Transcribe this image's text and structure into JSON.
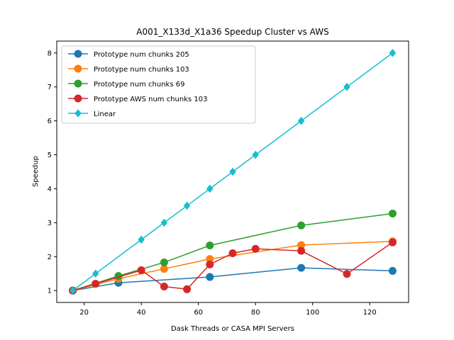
{
  "chart_data": {
    "type": "line",
    "title": "A001_X133d_X1a36 Speedup Cluster vs AWS",
    "xlabel": "Dask Threads or CASA MPI Servers",
    "ylabel": "Speedup",
    "xlim": [
      10.4,
      133.6
    ],
    "ylim": [
      0.65,
      8.35
    ],
    "xticks": [
      20,
      40,
      60,
      80,
      100,
      120
    ],
    "yticks": [
      1,
      2,
      3,
      4,
      5,
      6,
      7,
      8
    ],
    "grid": false,
    "legend_position": "upper-left",
    "series": [
      {
        "name": "Prototype num chunks 205",
        "color": "#1f77b4",
        "marker": "circle",
        "x": [
          16,
          32,
          64,
          96,
          128
        ],
        "y": [
          1.0,
          1.23,
          1.4,
          1.67,
          1.58
        ]
      },
      {
        "name": "Prototype num chunks 103",
        "color": "#ff7f0e",
        "marker": "circle",
        "x": [
          16,
          32,
          48,
          64,
          96,
          128
        ],
        "y": [
          1.0,
          1.35,
          1.64,
          1.93,
          2.34,
          2.45
        ]
      },
      {
        "name": "Prototype num chunks 69",
        "color": "#2ca02c",
        "marker": "circle",
        "x": [
          16,
          32,
          48,
          64,
          96,
          128
        ],
        "y": [
          1.0,
          1.43,
          1.83,
          2.33,
          2.92,
          3.27
        ]
      },
      {
        "name": "Prototype AWS num chunks 103",
        "color": "#d62728",
        "marker": "circle",
        "x": [
          16,
          24,
          40,
          48,
          56,
          64,
          72,
          80,
          96,
          112,
          128
        ],
        "y": [
          1.0,
          1.2,
          1.6,
          1.12,
          1.04,
          1.77,
          2.1,
          2.23,
          2.17,
          1.49,
          2.42
        ]
      },
      {
        "name": "Linear",
        "color": "#17becf",
        "marker": "diamond",
        "x": [
          16,
          24,
          40,
          48,
          56,
          64,
          72,
          80,
          96,
          112,
          128
        ],
        "y": [
          1.0,
          1.5,
          2.5,
          3.0,
          3.5,
          4.0,
          4.5,
          5.0,
          6.0,
          7.0,
          8.0
        ]
      }
    ]
  }
}
